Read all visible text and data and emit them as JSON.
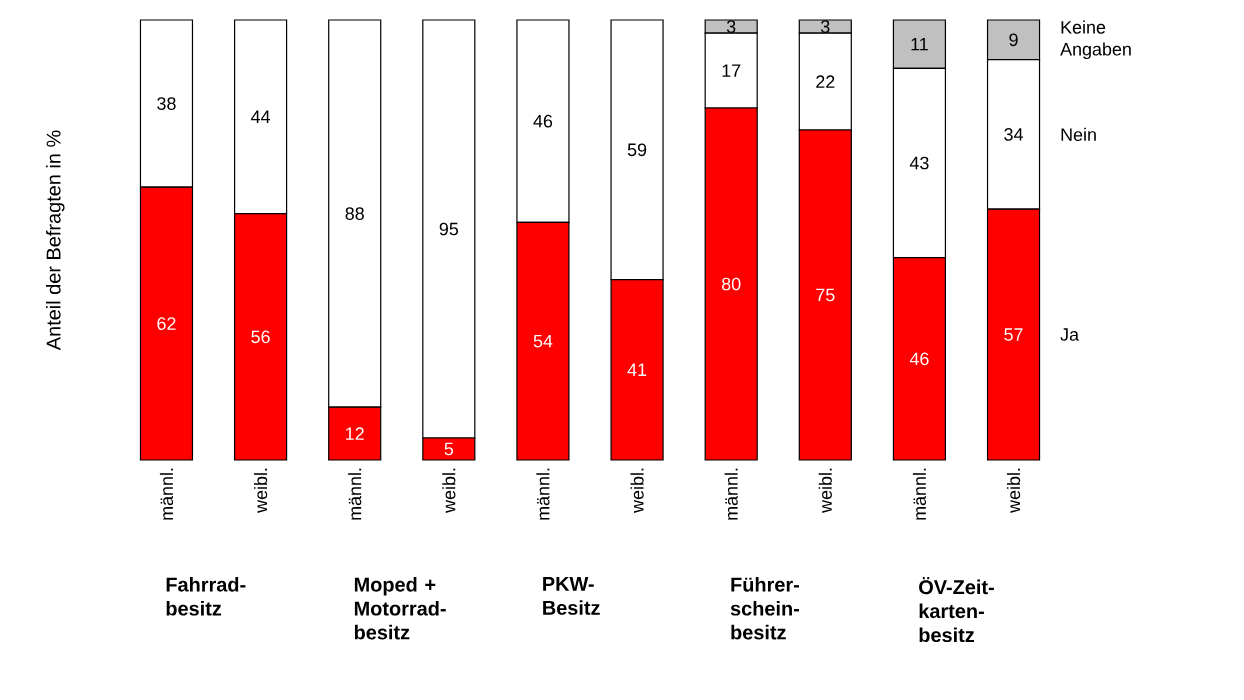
{
  "chart_data": {
    "type": "bar",
    "stacked": true,
    "ylabel": "Anteil der Befragten in %",
    "categories": [
      "männl.",
      "weibl.",
      "männl.",
      "weibl.",
      "männl.",
      "weibl.",
      "männl.",
      "weibl.",
      "männl.",
      "weibl."
    ],
    "series": [
      {
        "name": "Ja",
        "color": "#ff0000",
        "values": [
          62,
          56,
          12,
          5,
          54,
          41,
          80,
          75,
          46,
          57
        ]
      },
      {
        "name": "Nein",
        "color": "#ffffff",
        "values": [
          38,
          44,
          88,
          95,
          46,
          59,
          17,
          22,
          43,
          34
        ]
      },
      {
        "name": "Keine Angaben",
        "color": "#c0c0c0",
        "values": [
          null,
          null,
          null,
          null,
          null,
          null,
          3,
          3,
          11,
          9
        ]
      }
    ],
    "tick_labels": "x",
    "data_labels": true,
    "annotations": [
      "Fahrrad- besitz",
      "Moped + Motorrad- besitz",
      "PKW- Besitz",
      "Führer- schein- besitz",
      "ÖV-Zeit- karten- besitz"
    ]
  }
}
